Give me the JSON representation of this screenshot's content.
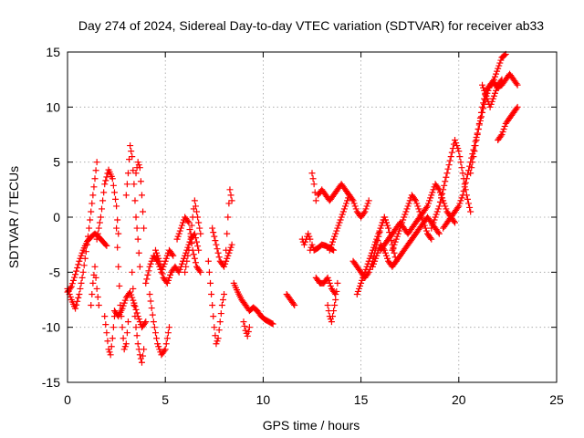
{
  "chart_data": {
    "type": "scatter",
    "title": "Day 274 of 2024, Sidereal Day-to-day VTEC variation (SDTVAR) for receiver ab33",
    "xlabel": "GPS time / hours",
    "ylabel": "SDTVAR / TECUs",
    "xlim": [
      0,
      25
    ],
    "ylim": [
      -15,
      15
    ],
    "xticks": [
      0,
      5,
      10,
      15,
      20,
      25
    ],
    "yticks": [
      -15,
      -10,
      -5,
      0,
      5,
      10,
      15
    ],
    "xtick_labels": [
      "0",
      "5",
      "10",
      "15",
      "20",
      "25"
    ],
    "ytick_labels": [
      "-15",
      "-10",
      "-5",
      "0",
      "5",
      "10",
      "15"
    ],
    "grid": true,
    "marker": "plus",
    "color": "#ff0000",
    "series": [
      {
        "name": "s1",
        "x": [
          0.0,
          0.2,
          0.4,
          0.6,
          0.8,
          1.0,
          1.2,
          1.4,
          1.5
        ],
        "y": [
          -6.5,
          -7.5,
          -8.3,
          -7.0,
          -5.0,
          -2.5,
          0.5,
          3.5,
          5.0
        ]
      },
      {
        "name": "s2",
        "x": [
          0.0,
          0.2,
          0.4,
          0.6,
          0.8,
          1.0,
          1.2,
          1.4,
          1.6,
          1.8,
          2.0
        ],
        "y": [
          -6.8,
          -6.3,
          -5.2,
          -4.0,
          -3.0,
          -2.2,
          -1.8,
          -1.5,
          -1.8,
          -2.2,
          -2.6
        ]
      },
      {
        "name": "s3",
        "x": [
          1.2,
          1.3,
          1.4,
          1.5,
          1.6
        ],
        "y": [
          -8.0,
          -6.0,
          -4.5,
          -6.5,
          -8.0
        ]
      },
      {
        "name": "s4",
        "x": [
          1.5,
          1.7,
          1.9,
          2.1,
          2.3,
          2.5,
          2.6
        ],
        "y": [
          -2.0,
          0.0,
          3.0,
          4.3,
          3.5,
          1.0,
          -1.5
        ]
      },
      {
        "name": "s5",
        "x": [
          1.9,
          2.0,
          2.1,
          2.2,
          2.3,
          2.4
        ],
        "y": [
          -9.0,
          -10.5,
          -12.0,
          -12.5,
          -11.0,
          -9.0
        ]
      },
      {
        "name": "s6",
        "x": [
          2.5,
          2.6,
          2.7,
          2.8,
          2.9,
          3.0,
          3.1
        ],
        "y": [
          -1.0,
          -4.5,
          -8.0,
          -10.0,
          -12.0,
          -11.5,
          -9.5
        ]
      },
      {
        "name": "s7",
        "x": [
          2.4,
          2.6,
          2.8,
          3.0,
          3.2,
          3.4,
          3.6,
          3.8,
          4.0
        ],
        "y": [
          -8.5,
          -9.0,
          -8.3,
          -7.3,
          -6.8,
          -7.8,
          -9.0,
          -10.0,
          -9.5
        ]
      },
      {
        "name": "s8",
        "x": [
          3.0,
          3.1,
          3.2,
          3.3,
          3.4,
          3.5,
          3.6,
          3.7
        ],
        "y": [
          2.0,
          4.0,
          6.5,
          5.5,
          3.0,
          0.0,
          -2.0,
          -4.5
        ]
      },
      {
        "name": "s9",
        "x": [
          3.3,
          3.4,
          3.5,
          3.6,
          3.7,
          3.8,
          3.9
        ],
        "y": [
          -5.0,
          -8.0,
          -10.0,
          -11.5,
          -12.5,
          -13.2,
          -12.0
        ]
      },
      {
        "name": "s10",
        "x": [
          3.5,
          3.6,
          3.7,
          3.8,
          3.9
        ],
        "y": [
          4.0,
          5.0,
          4.5,
          2.0,
          -1.0
        ]
      },
      {
        "name": "s11",
        "x": [
          4.0,
          4.2,
          4.4,
          4.6,
          4.8,
          5.0,
          5.2,
          5.4
        ],
        "y": [
          -6.0,
          -4.5,
          -3.5,
          -4.0,
          -5.0,
          -4.0,
          -3.0,
          -3.5
        ]
      },
      {
        "name": "s12",
        "x": [
          4.2,
          4.4,
          4.6,
          4.8,
          5.0,
          5.2
        ],
        "y": [
          -7.0,
          -9.5,
          -11.5,
          -12.5,
          -12.0,
          -10.0
        ]
      },
      {
        "name": "s13",
        "x": [
          4.5,
          4.7,
          4.9,
          5.1,
          5.3,
          5.5,
          5.7,
          5.9,
          6.1,
          6.3,
          6.5,
          6.7
        ],
        "y": [
          -3.0,
          -4.0,
          -5.5,
          -6.0,
          -5.0,
          -4.5,
          -5.0,
          -4.0,
          -3.0,
          -2.0,
          -1.5,
          -3.0
        ]
      },
      {
        "name": "s14",
        "x": [
          5.6,
          5.8,
          6.0,
          6.2,
          6.4,
          6.6,
          6.8
        ],
        "y": [
          -2.0,
          -1.0,
          0.0,
          -0.5,
          -3.0,
          -4.5,
          -5.0
        ]
      },
      {
        "name": "s15",
        "x": [
          6.0,
          6.2,
          6.4,
          6.5,
          6.6,
          6.8
        ],
        "y": [
          -5.0,
          -3.0,
          0.0,
          1.5,
          0.5,
          -1.5
        ]
      },
      {
        "name": "s16",
        "x": [
          7.2,
          7.3,
          7.4,
          7.5,
          7.6,
          7.7,
          7.8,
          7.9,
          8.0
        ],
        "y": [
          -4.0,
          -6.0,
          -8.0,
          -10.0,
          -11.5,
          -11.0,
          -9.5,
          -8.0,
          -7.0
        ]
      },
      {
        "name": "s17",
        "x": [
          7.4,
          7.6,
          7.8,
          8.0,
          8.2,
          8.4
        ],
        "y": [
          -1.0,
          -2.5,
          -4.0,
          -4.5,
          -3.5,
          -2.5
        ]
      },
      {
        "name": "s18",
        "x": [
          8.1,
          8.2,
          8.3,
          8.4
        ],
        "y": [
          -3.0,
          0.0,
          2.5,
          1.5
        ]
      },
      {
        "name": "s19",
        "x": [
          8.5,
          8.7,
          8.9,
          9.1,
          9.3,
          9.5,
          9.7,
          9.9,
          10.1,
          10.3,
          10.5
        ],
        "y": [
          -6.0,
          -6.8,
          -7.5,
          -8.0,
          -8.5,
          -8.2,
          -8.5,
          -9.0,
          -9.3,
          -9.5,
          -9.7
        ]
      },
      {
        "name": "s20",
        "x": [
          9.0,
          9.1,
          9.2,
          9.3
        ],
        "y": [
          -9.5,
          -10.3,
          -10.8,
          -10.0
        ]
      },
      {
        "name": "s21",
        "x": [
          11.2,
          11.4,
          11.6
        ],
        "y": [
          -7.0,
          -7.5,
          -8.0
        ]
      },
      {
        "name": "s22",
        "x": [
          12.0,
          12.1,
          12.2,
          12.3,
          12.4
        ],
        "y": [
          -2.0,
          -2.5,
          -2.0,
          -1.5,
          -2.0
        ]
      },
      {
        "name": "s23",
        "x": [
          12.4,
          12.5,
          12.6,
          12.8,
          13.0,
          13.2,
          13.4,
          13.6
        ],
        "y": [
          -3.0,
          -2.5,
          -3.0,
          -2.8,
          -2.5,
          -2.6,
          -2.8,
          -3.0
        ]
      },
      {
        "name": "s24",
        "x": [
          12.5,
          12.6,
          12.7
        ],
        "y": [
          4.0,
          3.0,
          1.5
        ]
      },
      {
        "name": "s25",
        "x": [
          12.7,
          12.9,
          13.1,
          13.3,
          13.5,
          13.7
        ],
        "y": [
          -5.5,
          -6.0,
          -6.0,
          -5.5,
          -6.5,
          -7.0
        ]
      },
      {
        "name": "s26",
        "x": [
          13.3,
          13.4,
          13.5,
          13.6,
          13.7,
          13.8
        ],
        "y": [
          -8.0,
          -9.0,
          -9.5,
          -8.5,
          -7.5,
          -6.0
        ]
      },
      {
        "name": "s27",
        "x": [
          12.8,
          13.0,
          13.2,
          13.4,
          13.6,
          13.8,
          14.0,
          14.2,
          14.4
        ],
        "y": [
          2.0,
          2.5,
          2.0,
          1.5,
          2.0,
          2.5,
          3.0,
          2.5,
          2.0
        ]
      },
      {
        "name": "s28",
        "x": [
          13.4,
          13.6,
          13.8,
          14.0,
          14.2,
          14.4,
          14.6,
          14.8,
          15.0,
          15.2,
          15.4
        ],
        "y": [
          -3.0,
          -2.0,
          -1.0,
          0.0,
          1.0,
          2.0,
          1.5,
          0.5,
          0.0,
          0.5,
          1.5
        ]
      },
      {
        "name": "s29",
        "x": [
          14.6,
          14.8,
          15.0,
          15.2,
          15.4,
          15.6,
          15.8,
          16.0,
          16.2,
          16.4
        ],
        "y": [
          -4.0,
          -4.5,
          -5.0,
          -5.5,
          -5.0,
          -4.0,
          -2.5,
          -1.0,
          0.0,
          -1.0
        ]
      },
      {
        "name": "s30",
        "x": [
          14.8,
          15.0,
          15.2,
          15.4,
          15.6,
          15.8,
          16.0,
          16.2,
          16.4,
          16.6,
          16.8
        ],
        "y": [
          -7.0,
          -6.0,
          -5.0,
          -4.0,
          -3.0,
          -2.0,
          -1.0,
          0.0,
          -1.0,
          -2.5,
          -4.0
        ]
      },
      {
        "name": "s31",
        "x": [
          15.6,
          15.8,
          16.0,
          16.2,
          16.4,
          16.6,
          16.8,
          17.0,
          17.2,
          17.4,
          17.6,
          17.8,
          18.0,
          18.2,
          18.4,
          18.6,
          18.8,
          19.0
        ],
        "y": [
          -4.5,
          -3.5,
          -2.5,
          -3.0,
          -4.0,
          -4.5,
          -4.0,
          -3.5,
          -3.0,
          -2.5,
          -2.0,
          -1.5,
          -1.0,
          -0.5,
          0.0,
          -0.5,
          -1.0,
          -1.5
        ]
      },
      {
        "name": "s32",
        "x": [
          16.0,
          16.2,
          16.4,
          16.6,
          16.8,
          17.0,
          17.2,
          17.4,
          17.6,
          17.8,
          18.0,
          18.2,
          18.4,
          18.6,
          18.8,
          19.0,
          19.2,
          19.4,
          19.6,
          19.8
        ],
        "y": [
          -3.0,
          -2.5,
          -2.0,
          -1.5,
          -1.0,
          -0.5,
          -1.0,
          -1.5,
          -1.0,
          -0.5,
          0.0,
          0.5,
          1.0,
          2.0,
          3.0,
          2.5,
          1.5,
          0.5,
          0.0,
          -0.5
        ]
      },
      {
        "name": "s33",
        "x": [
          16.6,
          16.8,
          17.0,
          17.2,
          17.4,
          17.6,
          17.8,
          18.0,
          18.2,
          18.4,
          18.6
        ],
        "y": [
          -3.0,
          -2.0,
          -1.0,
          0.0,
          1.0,
          2.0,
          1.5,
          0.5,
          -0.5,
          -1.5,
          -2.0
        ]
      },
      {
        "name": "s34",
        "x": [
          18.6,
          18.8,
          19.0,
          19.2,
          19.4,
          19.6,
          19.8,
          20.0,
          20.2,
          20.4,
          20.6
        ],
        "y": [
          -1.0,
          0.0,
          1.0,
          2.5,
          4.0,
          5.5,
          7.0,
          6.0,
          4.0,
          2.0,
          0.5
        ]
      },
      {
        "name": "s35",
        "x": [
          19.2,
          19.4,
          19.6,
          19.8,
          20.0,
          20.2,
          20.4,
          20.6,
          20.8,
          21.0,
          21.2,
          21.4,
          21.6,
          21.8,
          22.0,
          22.2,
          22.4
        ],
        "y": [
          -1.0,
          -0.5,
          0.0,
          0.5,
          1.0,
          2.0,
          3.5,
          5.0,
          6.5,
          8.0,
          9.5,
          11.0,
          12.0,
          12.5,
          13.5,
          14.5,
          14.8
        ]
      },
      {
        "name": "s36",
        "x": [
          20.6,
          20.8,
          21.0,
          21.2,
          21.4,
          21.6,
          21.8,
          22.0,
          22.2,
          22.4,
          22.6,
          22.8,
          23.0
        ],
        "y": [
          4.0,
          6.0,
          8.0,
          10.0,
          11.5,
          12.0,
          12.2,
          11.8,
          12.0,
          12.5,
          13.0,
          12.5,
          12.0
        ]
      },
      {
        "name": "s37",
        "x": [
          21.2,
          21.4,
          21.6,
          21.8,
          22.0,
          22.2
        ],
        "y": [
          12.0,
          11.0,
          10.0,
          11.0,
          12.0,
          12.5
        ]
      },
      {
        "name": "s38",
        "x": [
          22.0,
          22.2,
          22.4,
          22.6,
          22.8,
          23.0
        ],
        "y": [
          7.0,
          7.5,
          8.5,
          9.0,
          9.5,
          10.0
        ]
      }
    ]
  }
}
